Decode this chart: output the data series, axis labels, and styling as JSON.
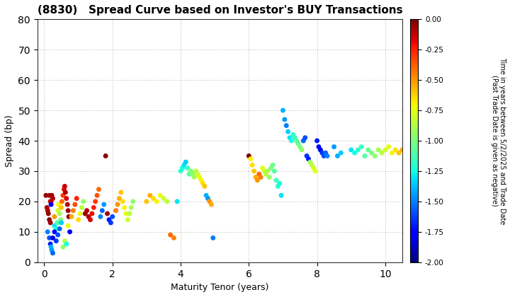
{
  "title": "(8830)   Spread Curve based on Investor's BUY Transactions",
  "xlabel": "Maturity Tenor (years)",
  "ylabel": "Spread (bp)",
  "xlim": [
    -0.2,
    10.5
  ],
  "ylim": [
    0,
    80
  ],
  "xticks": [
    0,
    2,
    4,
    6,
    8,
    10
  ],
  "yticks": [
    0,
    10,
    20,
    30,
    40,
    50,
    60,
    70,
    80
  ],
  "colorbar_label": "Time in years between 5/2/2025 and Trade Date\n(Past Trade Date is given as negative)",
  "cmap_vmin": -2.0,
  "cmap_vmax": 0.0,
  "cmap_ticks": [
    0.0,
    -0.25,
    -0.5,
    -0.75,
    -1.0,
    -1.25,
    -1.5,
    -1.75,
    -2.0
  ],
  "background_color": "#ffffff",
  "grid_color": "#bbbbbb",
  "marker_size": 25,
  "points": [
    [
      0.05,
      22,
      -0.05
    ],
    [
      0.08,
      18,
      -0.08
    ],
    [
      0.1,
      17,
      -0.1
    ],
    [
      0.12,
      16,
      -0.05
    ],
    [
      0.15,
      14,
      -0.03
    ],
    [
      0.18,
      13,
      -0.06
    ],
    [
      0.2,
      20,
      -0.04
    ],
    [
      0.22,
      22,
      -0.07
    ],
    [
      0.25,
      21,
      -0.09
    ],
    [
      0.1,
      10,
      -1.5
    ],
    [
      0.15,
      8,
      -1.6
    ],
    [
      0.18,
      6,
      -1.7
    ],
    [
      0.2,
      5,
      -1.4
    ],
    [
      0.22,
      4,
      -1.45
    ],
    [
      0.25,
      3,
      -1.55
    ],
    [
      0.3,
      12,
      -1.3
    ],
    [
      0.3,
      15,
      -0.5
    ],
    [
      0.35,
      11,
      -1.2
    ],
    [
      0.38,
      13,
      -1.1
    ],
    [
      0.4,
      17,
      -0.8
    ],
    [
      0.42,
      19,
      -0.7
    ],
    [
      0.45,
      16,
      -0.9
    ],
    [
      0.48,
      14,
      -1.0
    ],
    [
      0.5,
      18,
      -0.6
    ],
    [
      0.52,
      20,
      -0.4
    ],
    [
      0.55,
      22,
      -0.3
    ],
    [
      0.58,
      24,
      -0.2
    ],
    [
      0.6,
      25,
      -0.12
    ],
    [
      0.62,
      23,
      -0.08
    ],
    [
      0.65,
      21,
      -0.15
    ],
    [
      0.68,
      19,
      -0.1
    ],
    [
      0.7,
      17,
      -0.05
    ],
    [
      0.72,
      15,
      -0.02
    ],
    [
      0.15,
      22,
      -0.07
    ],
    [
      0.18,
      20,
      -0.12
    ],
    [
      0.2,
      19,
      -1.8
    ],
    [
      0.25,
      8,
      -1.85
    ],
    [
      0.3,
      10,
      -1.75
    ],
    [
      0.35,
      7,
      -1.65
    ],
    [
      0.4,
      9,
      -1.6
    ],
    [
      0.45,
      11,
      -1.55
    ],
    [
      0.5,
      13,
      -1.35
    ],
    [
      0.55,
      5,
      -0.95
    ],
    [
      0.6,
      7,
      -0.85
    ],
    [
      0.65,
      6,
      -1.25
    ],
    [
      0.7,
      12,
      -0.75
    ],
    [
      0.75,
      10,
      -1.8
    ],
    [
      0.8,
      15,
      -0.55
    ],
    [
      0.85,
      17,
      -0.45
    ],
    [
      0.9,
      19,
      -0.35
    ],
    [
      0.95,
      21,
      -0.25
    ],
    [
      1.0,
      14,
      -0.65
    ],
    [
      1.05,
      16,
      -0.75
    ],
    [
      1.1,
      18,
      -0.85
    ],
    [
      1.15,
      20,
      -0.95
    ],
    [
      1.2,
      16,
      -0.05
    ],
    [
      1.25,
      17,
      -0.08
    ],
    [
      1.3,
      15,
      -0.1
    ],
    [
      1.35,
      14,
      -0.15
    ],
    [
      1.4,
      16,
      -0.2
    ],
    [
      1.45,
      18,
      -0.25
    ],
    [
      1.5,
      20,
      -0.3
    ],
    [
      1.55,
      22,
      -0.35
    ],
    [
      1.6,
      24,
      -0.4
    ],
    [
      1.65,
      15,
      -1.5
    ],
    [
      1.7,
      17,
      -1.55
    ],
    [
      1.75,
      19,
      -1.45
    ],
    [
      1.8,
      35,
      -0.02
    ],
    [
      1.85,
      16,
      -0.06
    ],
    [
      1.9,
      14,
      -1.7
    ],
    [
      1.95,
      13,
      -1.65
    ],
    [
      2.0,
      15,
      -1.6
    ],
    [
      2.1,
      17,
      -0.45
    ],
    [
      2.15,
      19,
      -0.5
    ],
    [
      2.2,
      21,
      -0.55
    ],
    [
      2.25,
      23,
      -0.6
    ],
    [
      2.3,
      20,
      -0.65
    ],
    [
      2.35,
      18,
      -0.7
    ],
    [
      2.4,
      16,
      -0.75
    ],
    [
      2.45,
      14,
      -0.8
    ],
    [
      2.5,
      16,
      -0.85
    ],
    [
      2.55,
      18,
      -0.9
    ],
    [
      2.6,
      20,
      -0.95
    ],
    [
      3.0,
      20,
      -0.6
    ],
    [
      3.1,
      22,
      -0.55
    ],
    [
      3.2,
      21,
      -0.65
    ],
    [
      3.3,
      20,
      -0.7
    ],
    [
      3.4,
      22,
      -0.75
    ],
    [
      3.5,
      21,
      -0.8
    ],
    [
      3.6,
      20,
      -0.85
    ],
    [
      3.7,
      9,
      -0.4
    ],
    [
      3.8,
      8,
      -0.45
    ],
    [
      3.9,
      20,
      -1.3
    ],
    [
      4.0,
      30,
      -1.2
    ],
    [
      4.05,
      31,
      -1.25
    ],
    [
      4.1,
      32,
      -1.3
    ],
    [
      4.15,
      33,
      -1.35
    ],
    [
      4.2,
      31,
      -1.15
    ],
    [
      4.25,
      29,
      -1.1
    ],
    [
      4.3,
      30,
      -1.0
    ],
    [
      4.35,
      29,
      -0.95
    ],
    [
      4.4,
      28,
      -0.9
    ],
    [
      4.45,
      30,
      -0.85
    ],
    [
      4.5,
      29,
      -0.8
    ],
    [
      4.55,
      28,
      -0.75
    ],
    [
      4.6,
      27,
      -0.7
    ],
    [
      4.65,
      26,
      -0.65
    ],
    [
      4.7,
      25,
      -0.6
    ],
    [
      4.75,
      22,
      -1.4
    ],
    [
      4.8,
      21,
      -1.45
    ],
    [
      4.85,
      20,
      -0.5
    ],
    [
      4.9,
      19,
      -0.55
    ],
    [
      4.95,
      8,
      -1.5
    ],
    [
      6.0,
      35,
      -0.02
    ],
    [
      6.05,
      34,
      -0.7
    ],
    [
      6.1,
      32,
      -0.65
    ],
    [
      6.15,
      30,
      -0.6
    ],
    [
      6.2,
      28,
      -0.55
    ],
    [
      6.25,
      27,
      -0.5
    ],
    [
      6.3,
      29,
      -0.4
    ],
    [
      6.35,
      28,
      -0.45
    ],
    [
      6.4,
      31,
      -0.75
    ],
    [
      6.45,
      30,
      -0.8
    ],
    [
      6.5,
      29,
      -0.85
    ],
    [
      6.55,
      30,
      -0.9
    ],
    [
      6.6,
      28,
      -0.95
    ],
    [
      6.65,
      31,
      -1.0
    ],
    [
      6.7,
      32,
      -1.05
    ],
    [
      6.75,
      30,
      -1.1
    ],
    [
      6.8,
      27,
      -1.15
    ],
    [
      6.85,
      25,
      -1.2
    ],
    [
      6.9,
      26,
      -1.25
    ],
    [
      6.95,
      22,
      -1.3
    ],
    [
      7.0,
      50,
      -1.4
    ],
    [
      7.05,
      47,
      -1.45
    ],
    [
      7.1,
      45,
      -1.5
    ],
    [
      7.15,
      43,
      -1.35
    ],
    [
      7.2,
      41,
      -1.3
    ],
    [
      7.25,
      40,
      -1.25
    ],
    [
      7.3,
      42,
      -1.2
    ],
    [
      7.35,
      41,
      -1.15
    ],
    [
      7.4,
      40,
      -1.1
    ],
    [
      7.45,
      39,
      -1.05
    ],
    [
      7.5,
      38,
      -1.0
    ],
    [
      7.55,
      37,
      -0.95
    ],
    [
      7.6,
      40,
      -1.55
    ],
    [
      7.65,
      41,
      -1.6
    ],
    [
      7.7,
      35,
      -1.65
    ],
    [
      7.75,
      34,
      -1.7
    ],
    [
      7.8,
      33,
      -0.9
    ],
    [
      7.85,
      32,
      -0.85
    ],
    [
      7.9,
      31,
      -0.8
    ],
    [
      7.95,
      30,
      -0.75
    ],
    [
      8.0,
      40,
      -1.7
    ],
    [
      8.05,
      38,
      -1.75
    ],
    [
      8.1,
      37,
      -1.8
    ],
    [
      8.15,
      36,
      -1.65
    ],
    [
      8.2,
      35,
      -1.6
    ],
    [
      8.25,
      36,
      -1.55
    ],
    [
      8.3,
      35,
      -1.5
    ],
    [
      8.5,
      38,
      -1.45
    ],
    [
      8.6,
      35,
      -1.4
    ],
    [
      8.7,
      36,
      -1.35
    ],
    [
      9.0,
      37,
      -1.3
    ],
    [
      9.1,
      36,
      -1.25
    ],
    [
      9.2,
      37,
      -1.2
    ],
    [
      9.3,
      38,
      -1.15
    ],
    [
      9.4,
      35,
      -1.1
    ],
    [
      9.5,
      37,
      -1.05
    ],
    [
      9.6,
      36,
      -1.0
    ],
    [
      9.7,
      35,
      -0.95
    ],
    [
      9.8,
      37,
      -0.9
    ],
    [
      9.9,
      36,
      -0.85
    ],
    [
      10.0,
      37,
      -0.8
    ],
    [
      10.1,
      38,
      -0.75
    ],
    [
      10.2,
      36,
      -0.7
    ],
    [
      10.3,
      37,
      -0.65
    ],
    [
      10.4,
      36,
      -0.6
    ],
    [
      10.5,
      37,
      -0.55
    ]
  ]
}
